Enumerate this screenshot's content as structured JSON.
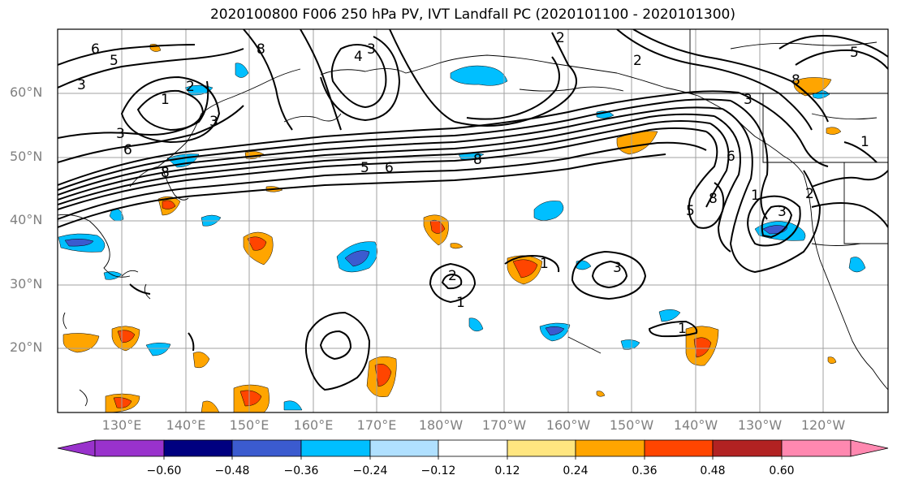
{
  "title": "2020100800 F006 250 hPa PV, IVT Landfall PC (2020101100 - 2020101300)",
  "lat_labels": [
    "60°N",
    "50°N",
    "40°N",
    "30°N",
    "20°N"
  ],
  "lon_labels": [
    "130°E",
    "140°E",
    "150°E",
    "160°E",
    "170°E",
    "180°W",
    "170°W",
    "160°W",
    "150°W",
    "140°W",
    "130°W",
    "120°W"
  ],
  "colorbar": {
    "ticks": [
      "−0.60",
      "−0.48",
      "−0.36",
      "−0.24",
      "−0.12",
      "0.12",
      "0.24",
      "0.36",
      "0.48",
      "0.60"
    ],
    "colors": [
      "#9932cc",
      "#000080",
      "#3b5bcf",
      "#00bfff",
      "#b0e0ff",
      "#ffffff",
      "#ffe680",
      "#ffa500",
      "#ff4500",
      "#b22222",
      "#ff88b0"
    ]
  },
  "contour_labels": [
    "6",
    "5",
    "3",
    "2",
    "1",
    "3",
    "6",
    "8",
    "8",
    "3",
    "4",
    "3",
    "2",
    "8",
    "5",
    "6",
    "8",
    "3",
    "2",
    "5",
    "8",
    "1",
    "6",
    "5",
    "2",
    "1",
    "3",
    "2",
    "1",
    "3",
    "1",
    "1"
  ]
}
